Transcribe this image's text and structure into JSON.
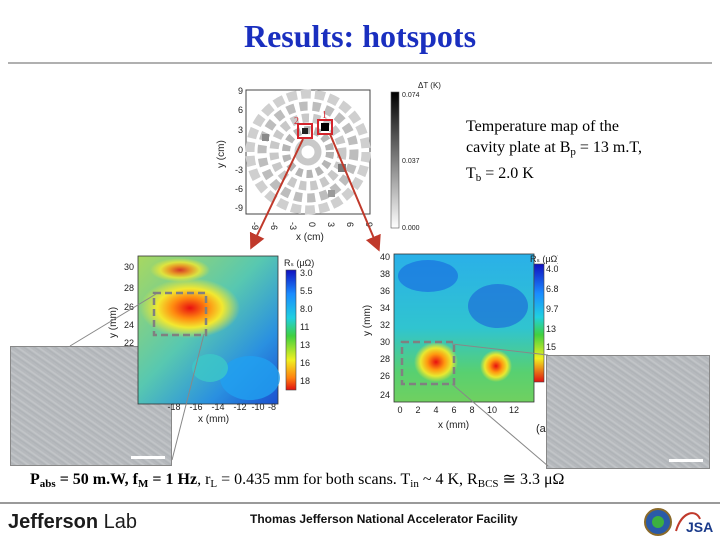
{
  "slide": {
    "title": "Results: hotspots",
    "caption": {
      "line1": "Temperature map of the",
      "line2_pre": "cavity plate at B",
      "line2_sub": "p",
      "line2_post": " = 13 m.T,",
      "line3_pre": "T",
      "line3_sub": "b",
      "line3_post": " = 2.0 K"
    },
    "bottom": {
      "p_label": "P",
      "p_sub": "abs",
      "p_value": " = 50 m.W, ",
      "f_label": "f",
      "f_sub": "M",
      "f_value": " = 1 Hz",
      "rest_pre": ", r",
      "rl_sub": "L",
      "rest_mid": " = 0.435 mm for both scans. T",
      "tin_sub": "in",
      "rest_mid2": " ~ 4 K, R",
      "rbcs_sub": "BCS",
      "rest_post": " ≅ 3.3 μΩ"
    },
    "footer": {
      "logo_bold": "Jefferson",
      "logo_light": " Lab",
      "facility": "Thomas Jefferson National Accelerator Facility",
      "jsa": "JSA"
    }
  },
  "temp_map": {
    "xlabel": "x (cm)",
    "ylabel": "y (cm)",
    "colorbar_label": "ΔT (K)",
    "colorbar_ticks": [
      "0.074",
      "0.037",
      "0.000"
    ],
    "yticks": [
      "9",
      "6",
      "3",
      "0",
      "-3",
      "-6",
      "-9"
    ],
    "xticks": [
      "-9",
      "-6",
      "-3",
      "0",
      "3",
      "6",
      "9"
    ],
    "marker1": "1",
    "marker2": "2"
  },
  "scan_left": {
    "xlabel": "x (mm)",
    "ylabel": "y (mm)",
    "colorbar_label": "Rₛ (μΩ)",
    "yticks": [
      "30",
      "28",
      "26",
      "24",
      "22"
    ],
    "xticks": [
      "-18",
      "-16",
      "-14",
      "-12",
      "-10",
      "-8"
    ],
    "colorbar_ticks": [
      "3.0",
      "5.5",
      "8.0",
      "11",
      "13",
      "16",
      "18"
    ]
  },
  "scan_right": {
    "xlabel": "x (mm)",
    "ylabel": "y (mm)",
    "colorbar_label": "Rₛ (μΩ)",
    "yticks": [
      "40",
      "38",
      "36",
      "34",
      "32",
      "30",
      "28",
      "26",
      "24"
    ],
    "xticks": [
      "0",
      "2",
      "4",
      "6",
      "8",
      "10",
      "12"
    ],
    "colorbar_ticks": [
      "4.0",
      "6.8",
      "9.7",
      "13",
      "15"
    ],
    "panel_letter": "(a"
  },
  "colors": {
    "title": "#1a2fbf",
    "arrow": "#c0392b",
    "marker_box": "#d4242c",
    "scan_box": "#808080"
  }
}
